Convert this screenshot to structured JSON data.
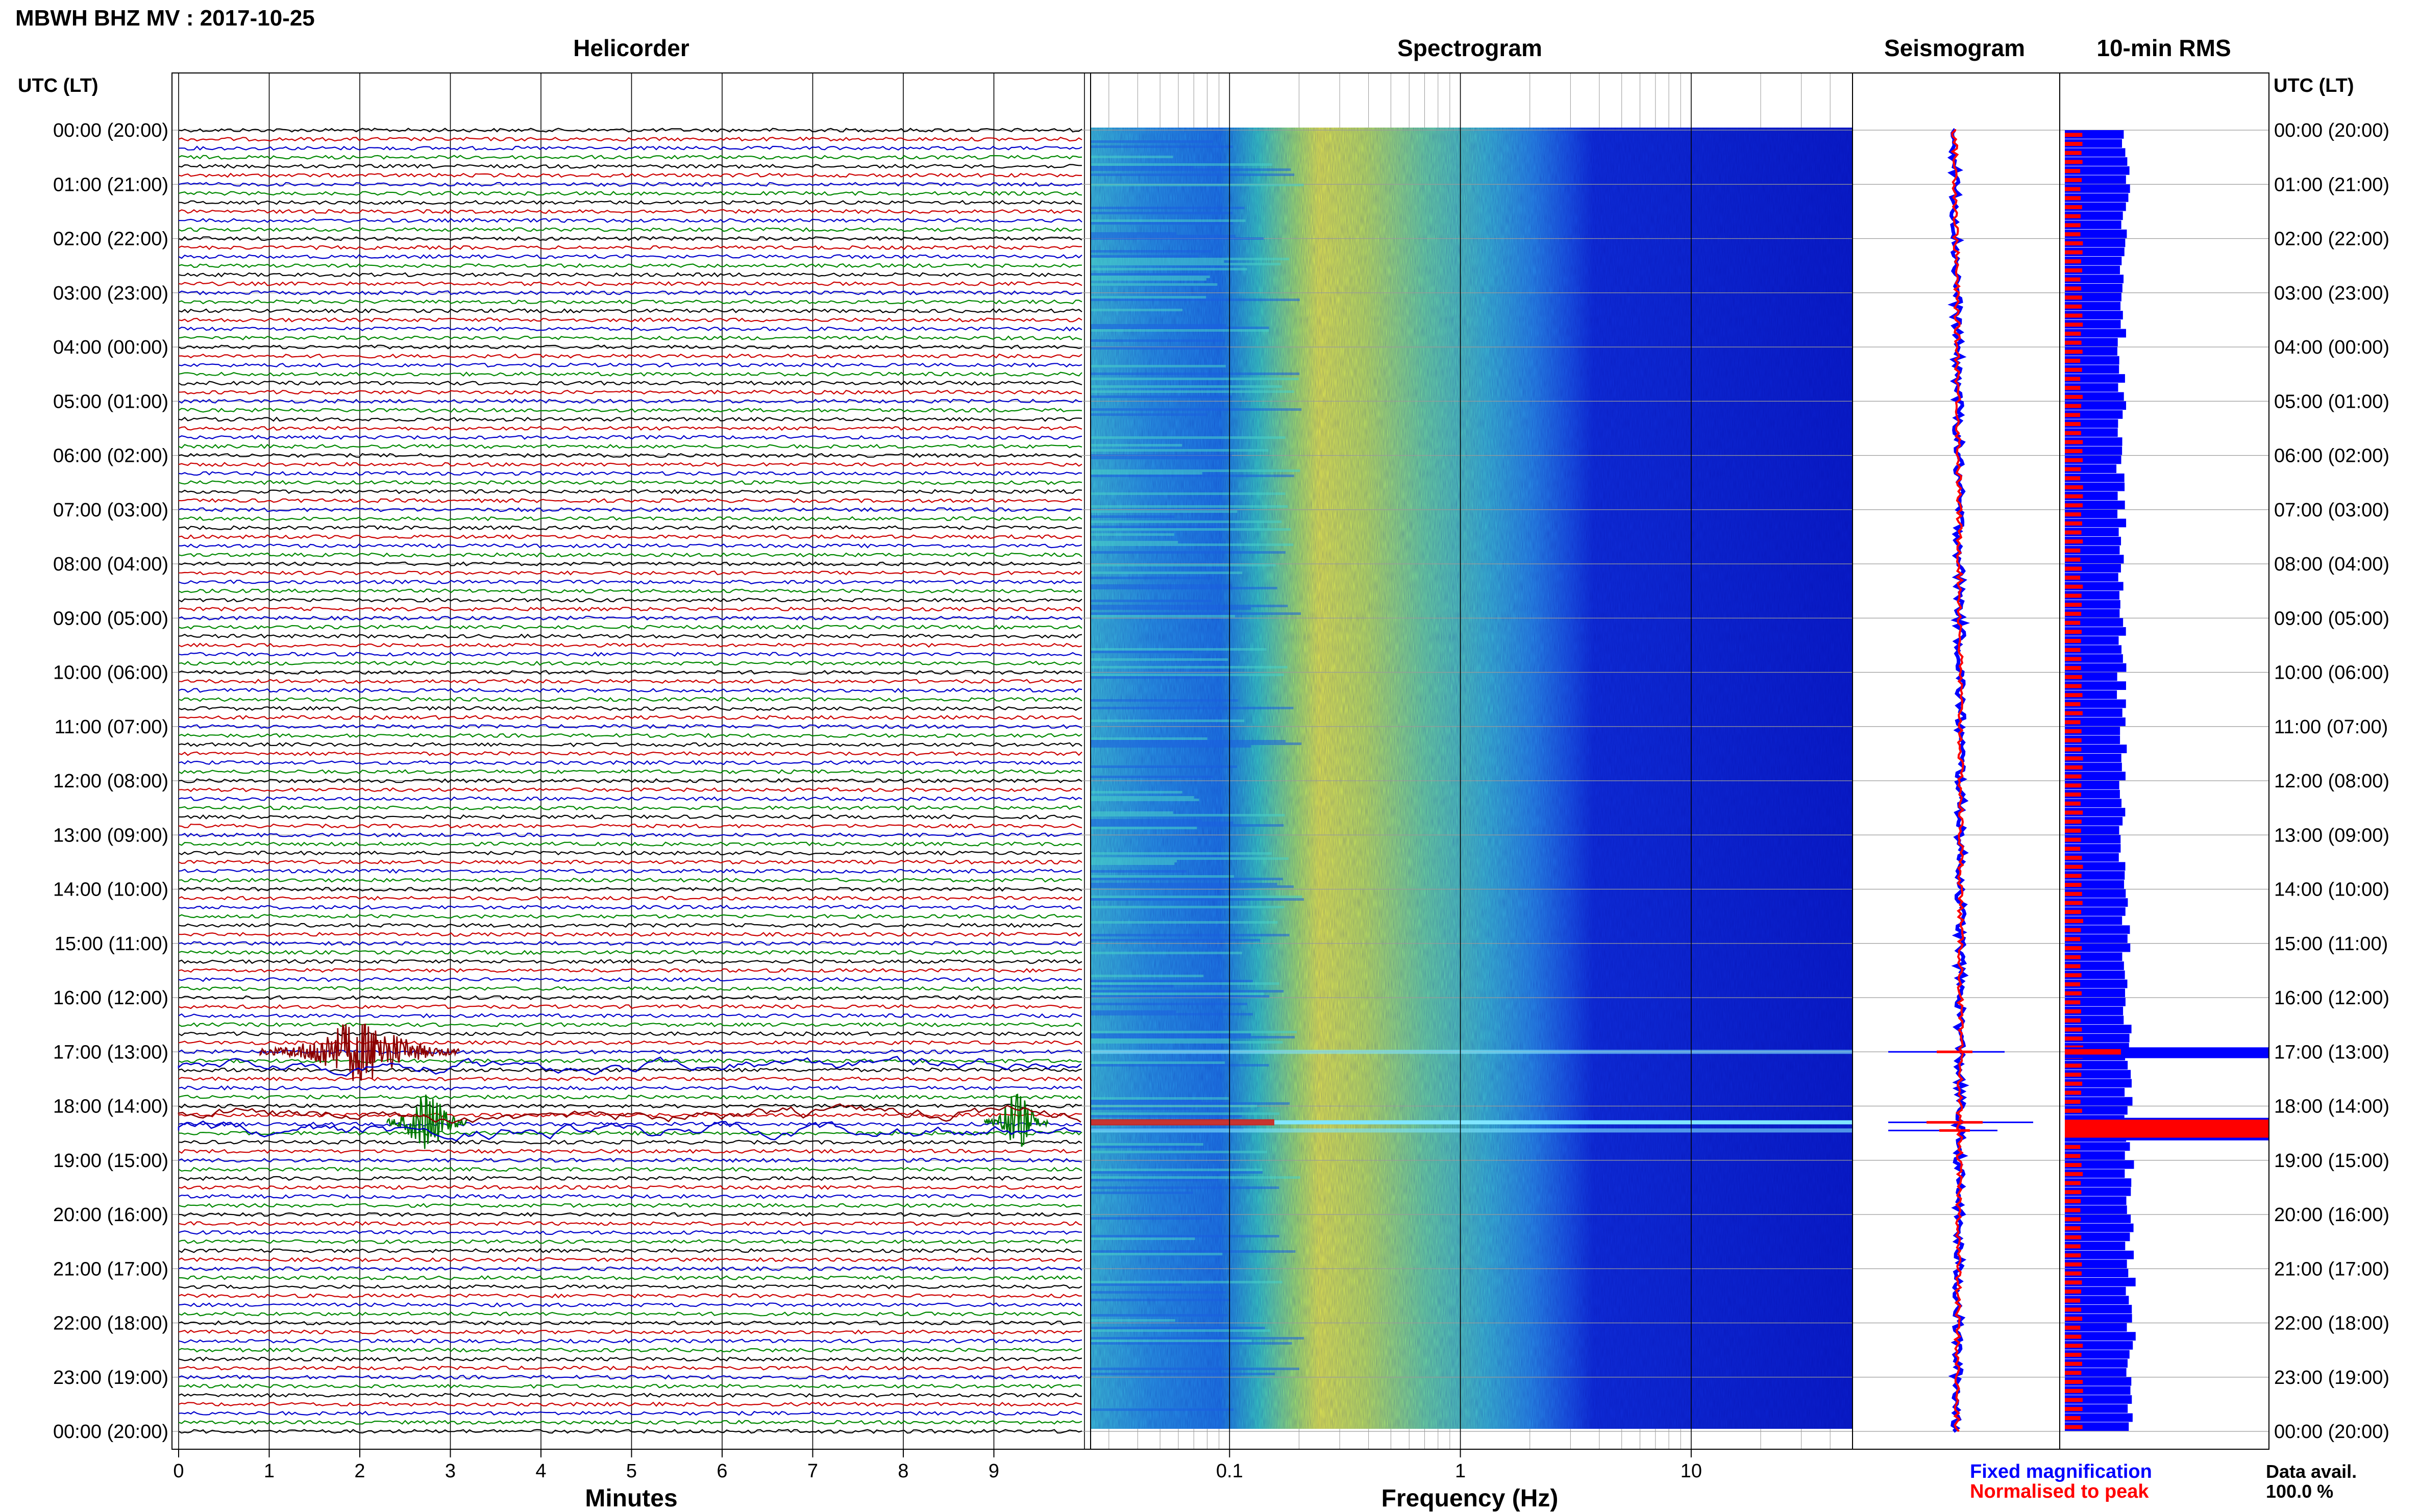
{
  "header": {
    "station_title": "MBWH BHZ MV : 2017-10-25",
    "helicorder_title": "Helicorder",
    "spectrogram_title": "Spectrogram",
    "seismogram_title": "Seismogram",
    "rms_title": "10-min RMS",
    "time_axis_label_left": "UTC (LT)",
    "time_axis_label_right": "UTC (LT)"
  },
  "footer": {
    "minutes_label": "Minutes",
    "frequency_label": "Frequency (Hz)",
    "legend_fixed": "Fixed magnification",
    "legend_normalised": "Normalised to peak",
    "data_avail_label": "Data avail.",
    "data_avail_value": "100.0 %"
  },
  "colors": {
    "fixed_magnification": "#0000ff",
    "normalised_to_peak": "#ff0000",
    "trace_colors": [
      "#000000",
      "#cc0000",
      "#0000cc",
      "#008800"
    ],
    "event_red": "#8b0000",
    "event_green": "#007700"
  },
  "chart_data": [
    {
      "type": "line",
      "name": "helicorder",
      "title": "Helicorder",
      "xlabel": "Minutes",
      "xlim": [
        0,
        10
      ],
      "x_ticks": [
        "0",
        "1",
        "2",
        "3",
        "4",
        "5",
        "6",
        "7",
        "8",
        "9"
      ],
      "y_ticks_left": [
        "00:00 (20:00)",
        "01:00 (21:00)",
        "02:00 (22:00)",
        "03:00 (23:00)",
        "04:00 (00:00)",
        "05:00 (01:00)",
        "06:00 (02:00)",
        "07:00 (03:00)",
        "08:00 (04:00)",
        "09:00 (05:00)",
        "10:00 (06:00)",
        "11:00 (07:00)",
        "12:00 (08:00)",
        "13:00 (09:00)",
        "14:00 (10:00)",
        "15:00 (11:00)",
        "16:00 (12:00)",
        "17:00 (13:00)",
        "18:00 (14:00)",
        "19:00 (15:00)",
        "20:00 (16:00)",
        "21:00 (17:00)",
        "22:00 (18:00)",
        "23:00 (19:00)",
        "00:00 (20:00)"
      ],
      "traces_per_hour": 6,
      "grid": true,
      "events": [
        {
          "hour_utc": 17.0,
          "minute_start": 0.9,
          "minute_end": 3.1,
          "color": "#8b0000",
          "note": "seismic signal"
        },
        {
          "hour_utc": 18.3,
          "minute_start": 2.3,
          "minute_end": 3.2,
          "color": "#007700"
        },
        {
          "hour_utc": 18.3,
          "minute_start": 8.9,
          "minute_end": 9.6,
          "color": "#007700"
        }
      ]
    },
    {
      "type": "heatmap",
      "name": "spectrogram",
      "title": "Spectrogram",
      "xlabel": "Frequency (Hz)",
      "x_scale": "log",
      "xlim": [
        0.025,
        50
      ],
      "x_ticks": [
        "0.1",
        "1",
        "10"
      ],
      "grid": true,
      "colormap": "jet",
      "band_peak_hz": 0.25
    },
    {
      "type": "line",
      "name": "seismogram",
      "title": "Seismogram",
      "series": [
        {
          "name": "Fixed magnification",
          "color": "#0000ff"
        },
        {
          "name": "Normalised to peak",
          "color": "#ff0000"
        }
      ]
    },
    {
      "type": "bar",
      "name": "rms",
      "title": "10-min RMS",
      "orientation": "horizontal",
      "series": [
        {
          "name": "Fixed magnification",
          "color": "#0000ff"
        },
        {
          "name": "Normalised to peak",
          "color": "#ff0000"
        }
      ],
      "spikes_utc": [
        17.0,
        18.3
      ]
    }
  ]
}
